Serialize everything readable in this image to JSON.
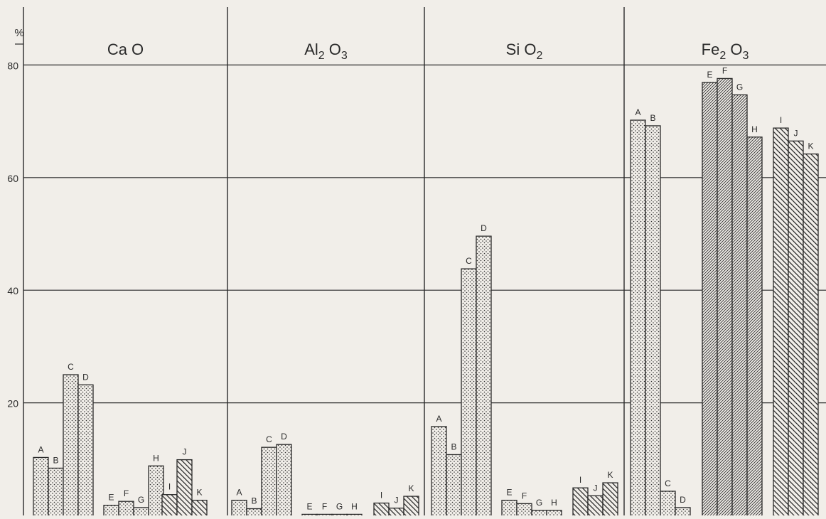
{
  "chart_data": {
    "type": "bar",
    "y_unit_label": "%",
    "ylim": [
      0,
      90
    ],
    "y_ticks": [
      20,
      40,
      60,
      80
    ],
    "grid": true,
    "legend": "none",
    "colors": {
      "ink": "#2a2a2a",
      "paper": "#f1eee9"
    },
    "panels": [
      {
        "title_parts": [
          {
            "t": "Ca O",
            "sub": false
          }
        ],
        "groups": [
          {
            "pattern": "dots",
            "bars": [
              {
                "label": "A",
                "value": 10.3
              },
              {
                "label": "B",
                "value": 8.4
              },
              {
                "label": "C",
                "value": 25.0
              },
              {
                "label": "D",
                "value": 23.2
              }
            ]
          },
          {
            "pattern": "dots",
            "bars": [
              {
                "label": "E",
                "value": 1.8
              },
              {
                "label": "F",
                "value": 2.5
              },
              {
                "label": "G",
                "value": 1.4
              },
              {
                "label": "H",
                "value": 8.8
              }
            ]
          },
          {
            "pattern": "hatch",
            "bars": [
              {
                "label": "I",
                "value": 3.7
              },
              {
                "label": "J",
                "value": 9.9
              },
              {
                "label": "K",
                "value": 2.7
              }
            ]
          }
        ]
      },
      {
        "title_parts": [
          {
            "t": "Al",
            "sub": false
          },
          {
            "t": "2",
            "sub": true
          },
          {
            "t": " O",
            "sub": false
          },
          {
            "t": "3",
            "sub": true
          }
        ],
        "groups": [
          {
            "pattern": "dots",
            "bars": [
              {
                "label": "A",
                "value": 2.7
              },
              {
                "label": "B",
                "value": 1.2
              },
              {
                "label": "C",
                "value": 12.1
              },
              {
                "label": "D",
                "value": 12.6
              }
            ]
          },
          {
            "pattern": "dots",
            "bars": [
              {
                "label": "E",
                "value": 0.2
              },
              {
                "label": "F",
                "value": 0.2
              },
              {
                "label": "G",
                "value": 0.2
              },
              {
                "label": "H",
                "value": 0.2
              }
            ]
          },
          {
            "pattern": "hatch",
            "bars": [
              {
                "label": "I",
                "value": 2.2
              },
              {
                "label": "J",
                "value": 1.3
              },
              {
                "label": "K",
                "value": 3.4
              }
            ]
          }
        ]
      },
      {
        "title_parts": [
          {
            "t": "Si O",
            "sub": false
          },
          {
            "t": "2",
            "sub": true
          }
        ],
        "groups": [
          {
            "pattern": "dots",
            "bars": [
              {
                "label": "A",
                "value": 15.8
              },
              {
                "label": "B",
                "value": 10.8
              },
              {
                "label": "C",
                "value": 43.8
              },
              {
                "label": "D",
                "value": 49.6
              }
            ]
          },
          {
            "pattern": "dots",
            "bars": [
              {
                "label": "E",
                "value": 2.7
              },
              {
                "label": "F",
                "value": 2.1
              },
              {
                "label": "G",
                "value": 0.9
              },
              {
                "label": "H",
                "value": 0.9
              }
            ]
          },
          {
            "pattern": "hatch",
            "bars": [
              {
                "label": "I",
                "value": 4.9
              },
              {
                "label": "J",
                "value": 3.5
              },
              {
                "label": "K",
                "value": 5.8
              }
            ]
          }
        ]
      },
      {
        "title_parts": [
          {
            "t": "Fe",
            "sub": false
          },
          {
            "t": "2",
            "sub": true
          },
          {
            "t": " O",
            "sub": false
          },
          {
            "t": "3",
            "sub": true
          }
        ],
        "groups": [
          {
            "pattern": "dots",
            "bars": [
              {
                "label": "A",
                "value": 70.2
              },
              {
                "label": "B",
                "value": 69.2
              },
              {
                "label": "C",
                "value": 4.3
              },
              {
                "label": "D",
                "value": 1.4
              }
            ]
          },
          {
            "pattern": "fine-hatch",
            "bars": [
              {
                "label": "E",
                "value": 76.9
              },
              {
                "label": "F",
                "value": 77.6
              },
              {
                "label": "G",
                "value": 74.7
              },
              {
                "label": "H",
                "value": 67.2
              }
            ]
          },
          {
            "pattern": "hatch",
            "bars": [
              {
                "label": "I",
                "value": 68.8
              },
              {
                "label": "J",
                "value": 66.5
              },
              {
                "label": "K",
                "value": 64.2
              }
            ]
          }
        ]
      }
    ]
  }
}
